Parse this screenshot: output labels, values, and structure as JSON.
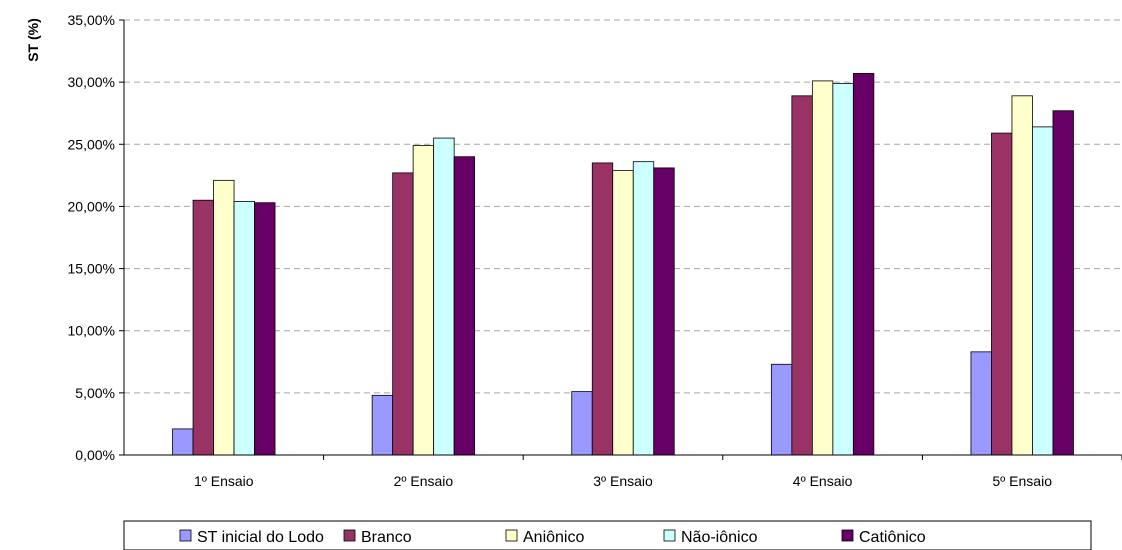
{
  "chart_data": {
    "type": "bar",
    "title": "",
    "xlabel": "",
    "ylabel": "ST (%)",
    "ylim": [
      0,
      35
    ],
    "ytick_step": 5,
    "ytick_labels": [
      "0,00%",
      "5,00%",
      "10,00%",
      "15,00%",
      "20,00%",
      "25,00%",
      "30,00%",
      "35,00%"
    ],
    "grid": "horizontal dashed",
    "legend_position": "bottom",
    "categories": [
      "1º Ensaio",
      "2º Ensaio",
      "3º Ensaio",
      "4º Ensaio",
      "5º Ensaio"
    ],
    "series": [
      {
        "name": "ST inicial do Lodo",
        "color": "#9999ff",
        "values": [
          2.1,
          4.8,
          5.1,
          7.3,
          8.3
        ]
      },
      {
        "name": "Branco",
        "color": "#993366",
        "values": [
          20.5,
          22.7,
          23.5,
          28.9,
          25.9
        ]
      },
      {
        "name": "Aniônico",
        "color": "#ffffcc",
        "values": [
          22.1,
          24.9,
          22.9,
          30.1,
          28.9
        ]
      },
      {
        "name": "Não-iônico",
        "color": "#ccffff",
        "values": [
          20.4,
          25.5,
          23.6,
          29.9,
          26.4
        ]
      },
      {
        "name": "Catiônico",
        "color": "#660066",
        "values": [
          20.3,
          24.0,
          23.1,
          30.7,
          27.7
        ]
      }
    ]
  }
}
